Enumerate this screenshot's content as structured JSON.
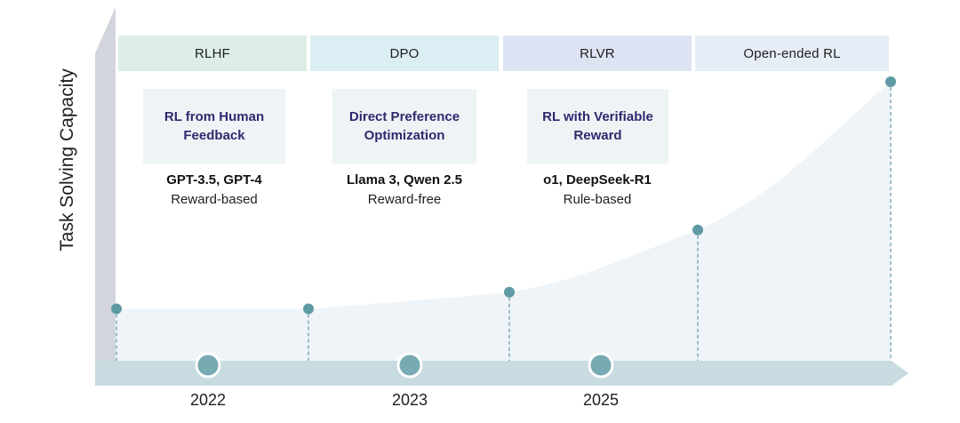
{
  "y_axis_label": "Task Solving Capacity",
  "colors": {
    "axis_gray": "#d3d5dd",
    "timeline_bar": "#c7dbe0",
    "area_fill": "#eef4f8",
    "point": "#5e9aa3",
    "year_marker": "#77aab2",
    "card_bg": "#eef3f6",
    "card_text": "#2e2a6e"
  },
  "phases": [
    {
      "label": "RLHF",
      "color": "#ddeee6"
    },
    {
      "label": "DPO",
      "color": "#dbeef4"
    },
    {
      "label": "RLVR",
      "color": "#dde3f2"
    },
    {
      "label": "Open-ended RL",
      "color": "#e6edf6"
    }
  ],
  "methods": [
    {
      "title_line1": "RL from Human",
      "title_line2": "Feedback",
      "models": "GPT-3.5, GPT-4",
      "kind": "Reward-based"
    },
    {
      "title_line1": "Direct Preference",
      "title_line2": "Optimization",
      "models": "Llama 3, Qwen 2.5",
      "kind": "Reward-free"
    },
    {
      "title_line1": "RL with Verifiable",
      "title_line2": "Reward",
      "models": "o1, DeepSeek-R1",
      "kind": "Rule-based"
    }
  ],
  "years": [
    "2022",
    "2023",
    "2025"
  ],
  "capacity_levels": [
    0.05,
    0.05,
    0.12,
    0.38,
    1.0
  ]
}
